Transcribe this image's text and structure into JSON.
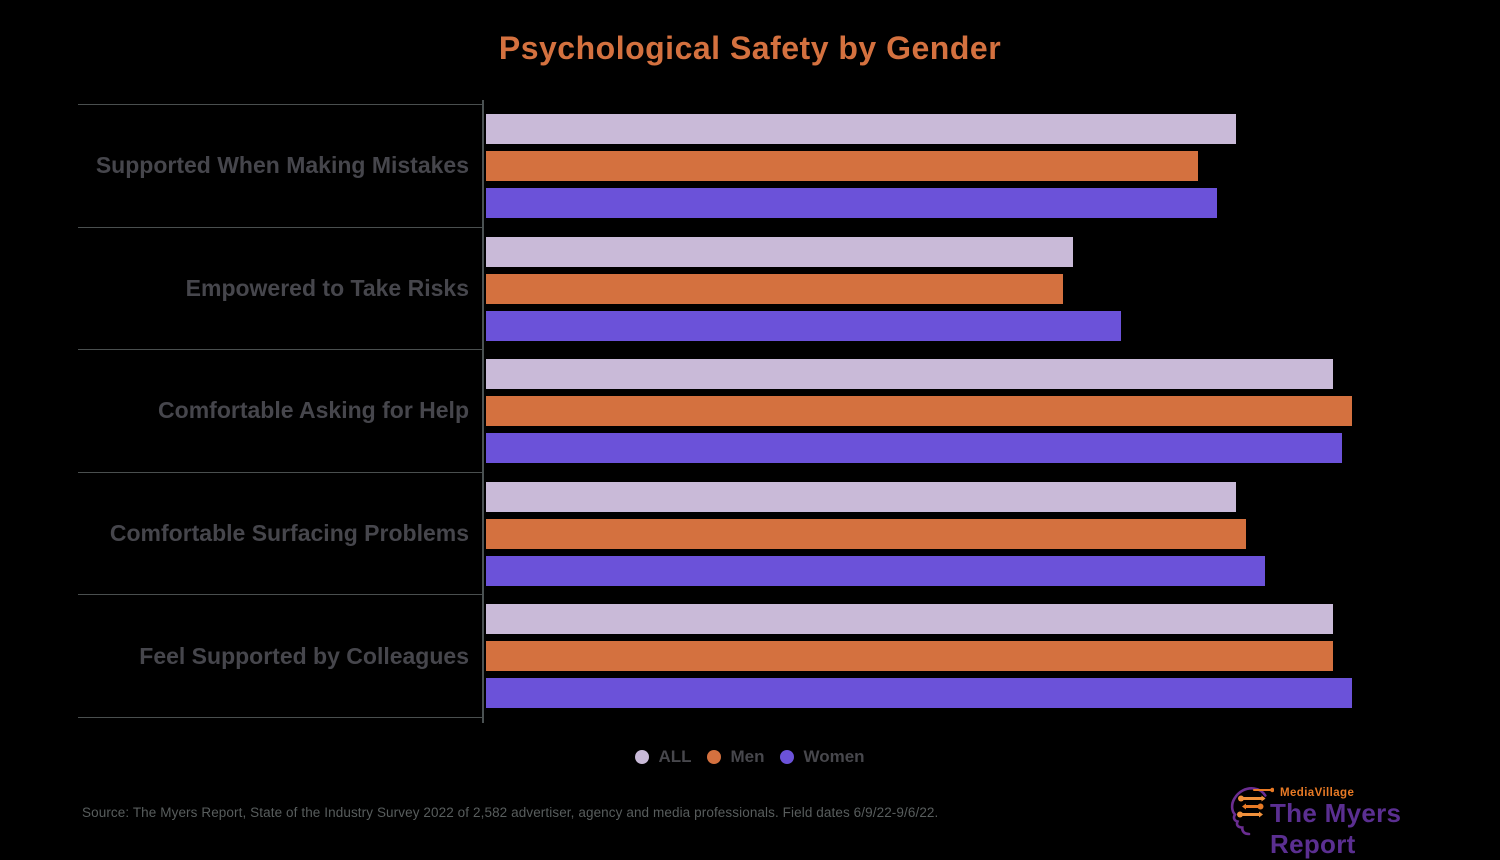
{
  "title": "Psychological Safety by Gender",
  "colors": {
    "background": "#000000",
    "title": "#d4713f",
    "category_label": "#46464c",
    "grid_line": "#4a4f4f",
    "axis_line": "#4a5152",
    "legend_text": "#47474c",
    "source_text": "#585d5d",
    "logo_orange": "#e87a25",
    "logo_purple": "#5b2f91"
  },
  "chart_data": {
    "type": "bar",
    "orientation": "horizontal",
    "title": "Psychological Safety by Gender",
    "categories": [
      "Supported When Making Mistakes",
      "Empowered to Take Risks",
      "Comfortable Asking for Help",
      "Comfortable Surfacing Problems",
      "Feel Supported by Colleagues"
    ],
    "series": [
      {
        "name": "ALL",
        "color": "#c9bad8",
        "values": [
          78,
          61,
          88,
          78,
          88
        ]
      },
      {
        "name": "Men",
        "color": "#d4713f",
        "values": [
          74,
          60,
          90,
          79,
          88
        ]
      },
      {
        "name": "Women",
        "color": "#6b52d9",
        "values": [
          76,
          66,
          89,
          81,
          90
        ]
      }
    ],
    "xlim": [
      0,
      100
    ],
    "x_axis_labels_visible": false,
    "values_estimated_from_bar_lengths": true,
    "grid": "category-dividers-left-of-axis",
    "legend_position": "bottom-center"
  },
  "legend": {
    "items": [
      "ALL",
      "Men",
      "Women"
    ]
  },
  "footer": {
    "source": "Source:  The Myers Report, State of the Industry Survey 2022 of 2,582 advertiser, agency and media professionals.  Field dates 6/9/22-9/6/22."
  },
  "logo": {
    "brand": "MediaVillage",
    "title": "The Myers Report"
  }
}
